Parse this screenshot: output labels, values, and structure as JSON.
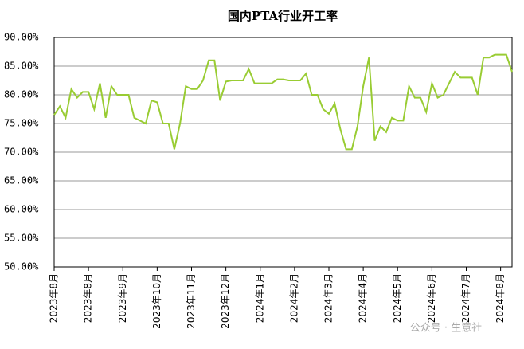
{
  "chart_data": {
    "type": "line",
    "title": "国内PTA行业开工率",
    "categories": [
      "2023年8月",
      null,
      null,
      null,
      null,
      null,
      "2023年8月",
      null,
      null,
      null,
      null,
      null,
      "2023年9月",
      null,
      null,
      null,
      null,
      null,
      "2023年10月",
      null,
      null,
      null,
      null,
      null,
      "2023年11月",
      null,
      null,
      null,
      null,
      null,
      "2023年12月",
      null,
      null,
      null,
      null,
      null,
      "2024年1月",
      null,
      null,
      null,
      null,
      null,
      "2024年2月",
      null,
      null,
      null,
      null,
      null,
      "2024年3月",
      null,
      null,
      null,
      null,
      null,
      "2024年4月",
      null,
      null,
      null,
      null,
      null,
      "2024年5月",
      null,
      null,
      null,
      null,
      null,
      "2024年6月",
      null,
      null,
      null,
      null,
      null,
      "2024年7月",
      null,
      null,
      null,
      null,
      null,
      "2024年8月",
      null,
      null
    ],
    "series": [
      {
        "color": "#99cc33",
        "values": [
          76.5,
          78,
          76,
          81,
          79.5,
          80.5,
          80.5,
          77.5,
          82,
          76,
          81.5,
          80,
          80,
          80,
          76,
          75.5,
          75,
          79,
          78.7,
          75,
          75,
          70.5,
          75,
          81.5,
          81,
          81,
          82.5,
          86,
          86,
          79,
          82.3,
          82.5,
          82.5,
          82.5,
          84.5,
          82,
          82,
          82,
          82,
          82.7,
          82.7,
          82.5,
          82.5,
          82.5,
          83.7,
          80,
          80,
          77.5,
          76.7,
          78.5,
          74,
          70.5,
          70.5,
          74.5,
          81.5,
          86.5,
          72,
          74.5,
          73.5,
          76,
          75.5,
          75.5,
          81.5,
          79.5,
          79.5,
          77,
          82,
          79.5,
          80,
          82,
          84,
          83,
          83,
          83,
          80,
          86.5,
          86.5,
          87,
          87,
          87,
          84
        ]
      }
    ],
    "ylim": [
      50,
      90
    ],
    "yticks": [
      {
        "value": 50,
        "label": "50.00%"
      },
      {
        "value": 55,
        "label": "55.00%"
      },
      {
        "value": 60,
        "label": "60.00%"
      },
      {
        "value": 65,
        "label": "65.00%"
      },
      {
        "value": 70,
        "label": "70.00%"
      },
      {
        "value": 75,
        "label": "75.00%"
      },
      {
        "value": 80,
        "label": "80.00%"
      },
      {
        "value": 85,
        "label": "85.00%"
      },
      {
        "value": 90,
        "label": "90.00%"
      }
    ],
    "grid": true,
    "annotation": "公众号 · 生意社"
  }
}
